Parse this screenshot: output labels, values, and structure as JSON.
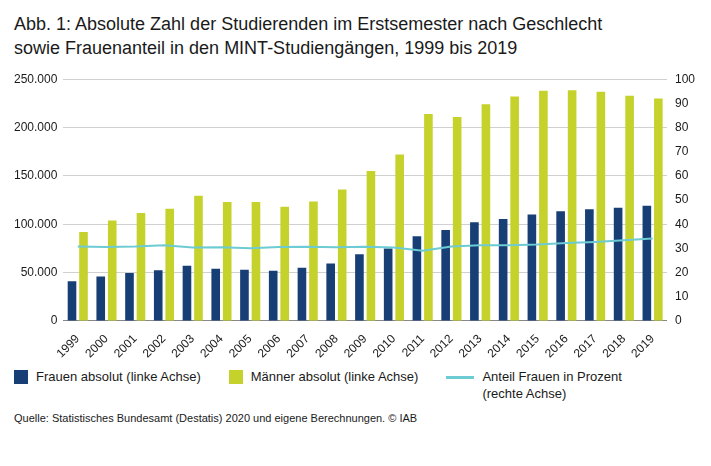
{
  "chart_data": {
    "type": "bar",
    "title": "Abb. 1: Absolute Zahl der Studierenden im Erstsemester nach Geschlecht\nsowie Frauenanteil in den MINT-Studiengängen, 1999 bis 2019",
    "source": "Quelle: Statistisches Bundesamt (Destatis) 2020 und eigene Berechnungen. © IAB",
    "categories": [
      "1999",
      "2000",
      "2001",
      "2002",
      "2003",
      "2004",
      "2005",
      "2006",
      "2007",
      "2008",
      "2009",
      "2010",
      "2011",
      "2012",
      "2013",
      "2014",
      "2015",
      "2016",
      "2017",
      "2018",
      "2019"
    ],
    "series": [
      {
        "name": "Frauen absolut (linke Achse)",
        "type": "bar",
        "color": "#173f75",
        "values": [
          41000,
          46000,
          49500,
          52500,
          57000,
          54000,
          53000,
          52000,
          55000,
          59500,
          69000,
          75000,
          87500,
          94000,
          102000,
          105500,
          110000,
          113500,
          115500,
          117000,
          119000
        ]
      },
      {
        "name": "Männer absolut (linke Achse)",
        "type": "bar",
        "color": "#c6d22c",
        "values": [
          92000,
          104000,
          111500,
          116000,
          129500,
          123000,
          123000,
          118000,
          123500,
          136000,
          155000,
          172000,
          214000,
          211000,
          224000,
          232000,
          238000,
          238500,
          237000,
          233000,
          230000
        ]
      },
      {
        "name": "Anteil Frauen in Prozent (rechte Achse)",
        "type": "line",
        "axis": "y2",
        "color": "#6ccbd3",
        "values": [
          30.8,
          30.6,
          30.8,
          31.3,
          30.4,
          30.5,
          30.1,
          30.6,
          30.7,
          30.5,
          30.7,
          30.4,
          29.0,
          30.8,
          31.3,
          31.3,
          31.6,
          32.2,
          32.7,
          33.4,
          34.1
        ]
      }
    ],
    "ylim": [
      0,
      250000
    ],
    "yticks": [
      0,
      {
        "value": 50000,
        "label": "50.000"
      },
      {
        "value": 100000,
        "label": "100.000"
      },
      {
        "value": 150000,
        "label": "150.000"
      },
      {
        "value": 200000,
        "label": "200.000"
      },
      {
        "value": 250000,
        "label": "250.000"
      }
    ],
    "y2lim": [
      0,
      100
    ],
    "y2ticks": [
      0,
      10,
      20,
      30,
      40,
      50,
      60,
      70,
      80,
      90,
      100
    ],
    "grid": true,
    "legend": "bottom"
  }
}
